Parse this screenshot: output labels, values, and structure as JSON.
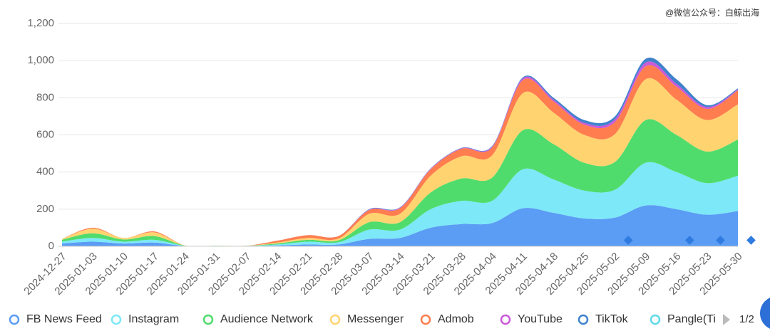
{
  "chart_data": {
    "type": "stacked-area",
    "watermark": "@微信公众号：白鲸出海",
    "pager": "1/2",
    "categories": [
      "2024-12-27",
      "2025-01-03",
      "2025-01-10",
      "2025-01-17",
      "2025-01-24",
      "2025-01-31",
      "2025-02-07",
      "2025-02-14",
      "2025-02-21",
      "2025-02-28",
      "2025-03-07",
      "2025-03-14",
      "2025-03-21",
      "2025-03-28",
      "2025-04-04",
      "2025-04-11",
      "2025-04-18",
      "2025-04-25",
      "2025-05-02",
      "2025-05-09",
      "2025-05-16",
      "2025-05-23",
      "2025-05-30"
    ],
    "series": [
      {
        "name": "FB News Feed",
        "color": "#5b9cf5",
        "values": [
          15,
          25,
          15,
          20,
          2,
          1,
          1,
          5,
          10,
          10,
          40,
          45,
          100,
          120,
          125,
          205,
          180,
          150,
          155,
          220,
          200,
          170,
          190
        ]
      },
      {
        "name": "Instagram",
        "color": "#7de8f7",
        "values": [
          10,
          20,
          10,
          15,
          1,
          1,
          1,
          5,
          15,
          12,
          50,
          45,
          100,
          125,
          120,
          210,
          180,
          150,
          150,
          230,
          200,
          170,
          190
        ]
      },
      {
        "name": "Audience Network",
        "color": "#4fdc6c",
        "values": [
          10,
          25,
          12,
          20,
          1,
          1,
          1,
          5,
          10,
          10,
          40,
          40,
          90,
          120,
          125,
          210,
          190,
          150,
          150,
          230,
          200,
          170,
          195
        ]
      },
      {
        "name": "Messenger",
        "color": "#ffd470",
        "values": [
          5,
          25,
          8,
          20,
          1,
          0,
          0,
          5,
          10,
          10,
          45,
          45,
          90,
          120,
          120,
          200,
          170,
          150,
          150,
          220,
          190,
          170,
          190
        ]
      },
      {
        "name": "Admob",
        "color": "#ff7d4f",
        "values": [
          0,
          5,
          0,
          5,
          0,
          0,
          0,
          10,
          15,
          13,
          20,
          30,
          35,
          40,
          42,
          70,
          60,
          55,
          65,
          70,
          70,
          60,
          75
        ]
      },
      {
        "name": "YouTube",
        "color": "#c95ad8",
        "values": [
          0,
          0,
          0,
          0,
          0,
          0,
          0,
          0,
          0,
          0,
          3,
          3,
          3,
          3,
          5,
          10,
          10,
          10,
          15,
          20,
          15,
          10,
          5
        ]
      },
      {
        "name": "TikTok",
        "color": "#3f82cc",
        "values": [
          0,
          0,
          0,
          0,
          0,
          0,
          0,
          0,
          0,
          0,
          2,
          2,
          2,
          2,
          3,
          5,
          10,
          15,
          15,
          20,
          25,
          10,
          5
        ]
      },
      {
        "name": "Pangle(Ti",
        "color": "#5fd9e8",
        "values": [
          0,
          0,
          0,
          0,
          0,
          0,
          0,
          0,
          0,
          0,
          0,
          0,
          0,
          0,
          0,
          0,
          0,
          0,
          0,
          0,
          0,
          0,
          0
        ]
      }
    ],
    "ylim": [
      0,
      1200
    ],
    "yticks": [
      0,
      200,
      400,
      600,
      800,
      {
        "value": 1000,
        "label": "1,000"
      },
      {
        "value": 1200,
        "label": "1,200"
      }
    ],
    "grid": true
  }
}
